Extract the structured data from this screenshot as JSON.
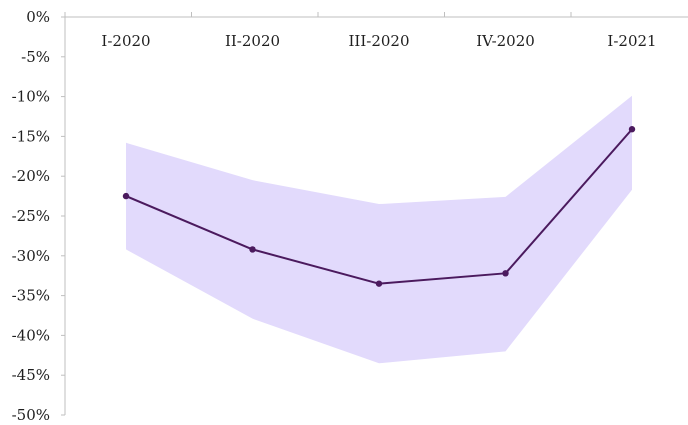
{
  "chart_data": {
    "type": "line",
    "title": "",
    "xlabel": "",
    "ylabel": "",
    "categories": [
      "I-2020",
      "II-2020",
      "III-2020",
      "IV-2020",
      "I-2021"
    ],
    "x_axis_position": "top",
    "ylim": [
      -50,
      0
    ],
    "y_ticks": [
      0,
      -5,
      -10,
      -15,
      -20,
      -25,
      -30,
      -35,
      -40,
      -45,
      -50
    ],
    "y_tick_labels": [
      "0%",
      "-5%",
      "-10%",
      "-15%",
      "-20%",
      "-25%",
      "-30%",
      "-35%",
      "-40%",
      "-45%",
      "-50%"
    ],
    "series": [
      {
        "values": [
          -22.5,
          -29.2,
          -33.5,
          -32.2,
          -14.1
        ],
        "color": "#4b1a5e",
        "style": "line-with-markers"
      }
    ],
    "band": {
      "upper": [
        -15.8,
        -20.5,
        -23.5,
        -22.6,
        -9.9
      ],
      "lower": [
        -29.2,
        -37.9,
        -43.5,
        -42.0,
        -21.7
      ],
      "color": "#e2dafc"
    },
    "grid": false,
    "legend": "none"
  }
}
